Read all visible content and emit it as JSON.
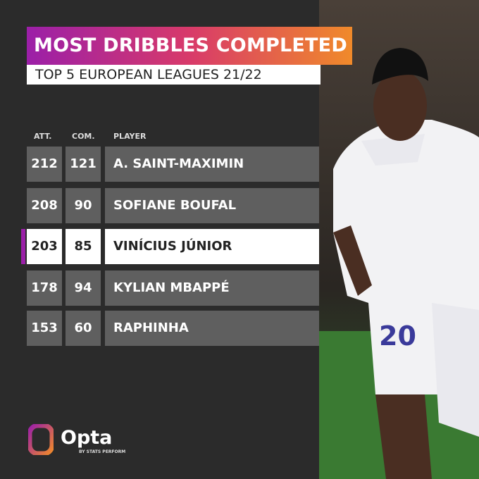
{
  "header": {
    "title": "MOST DRIBBLES COMPLETED",
    "subtitle": "TOP 5 EUROPEAN LEAGUES 21/22"
  },
  "table": {
    "columns": [
      "ATT.",
      "COM.",
      "PLAYER"
    ],
    "rows": [
      [
        212,
        121,
        "A. SAINT-MAXIMIN"
      ],
      [
        208,
        90,
        "SOFIANE BOUFAL"
      ],
      [
        203,
        85,
        "VINÍCIUS JÚNIOR"
      ],
      [
        178,
        94,
        "KYLIAN MBAPPÉ"
      ],
      [
        153,
        60,
        "RAPHINHA"
      ]
    ]
  },
  "logo": {
    "name": "Opta",
    "tagline": "BY STATS PERFORM"
  }
}
